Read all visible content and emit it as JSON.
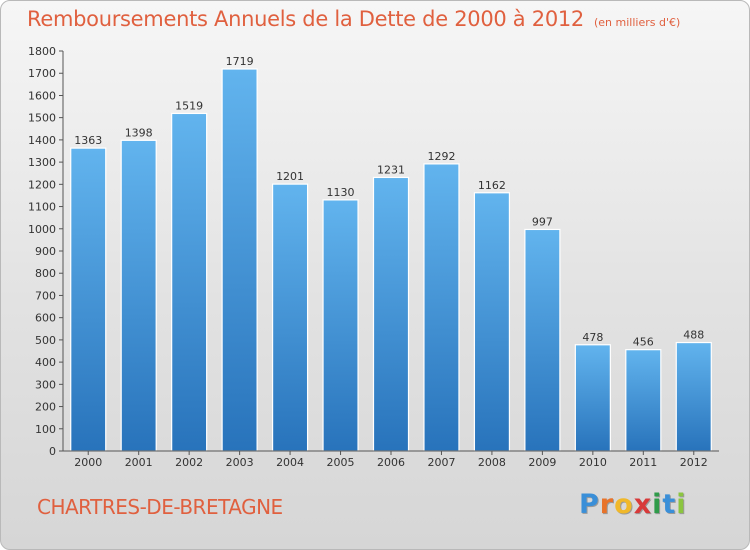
{
  "title": "Remboursements Annuels de la Dette de 2000 à 2012",
  "subtitle": "(en milliers d'€)",
  "city": "CHARTRES-DE-BRETAGNE",
  "logo": {
    "letters": [
      "P",
      "r",
      "o",
      "x",
      "i",
      "t",
      "i"
    ],
    "colors": [
      "#3a8fd8",
      "#e8732a",
      "#f0b82a",
      "#d83a3a",
      "#2f9b4a",
      "#3a8fd8",
      "#8bc53f"
    ]
  },
  "colors": {
    "bar_light": "#5eb0ec",
    "bar_dark": "#2a78c0",
    "title": "#e0603f"
  },
  "chart_data": {
    "type": "bar",
    "categories": [
      "2000",
      "2001",
      "2002",
      "2003",
      "2004",
      "2005",
      "2006",
      "2007",
      "2008",
      "2009",
      "2010",
      "2011",
      "2012"
    ],
    "values": [
      1363,
      1398,
      1519,
      1719,
      1201,
      1130,
      1231,
      1292,
      1162,
      997,
      478,
      456,
      488
    ],
    "ylim": [
      0,
      1800
    ],
    "yticks": [
      0,
      100,
      200,
      300,
      400,
      500,
      600,
      700,
      800,
      900,
      1000,
      1100,
      1200,
      1300,
      1400,
      1500,
      1600,
      1700,
      1800
    ],
    "grid": false,
    "legend": "none"
  }
}
